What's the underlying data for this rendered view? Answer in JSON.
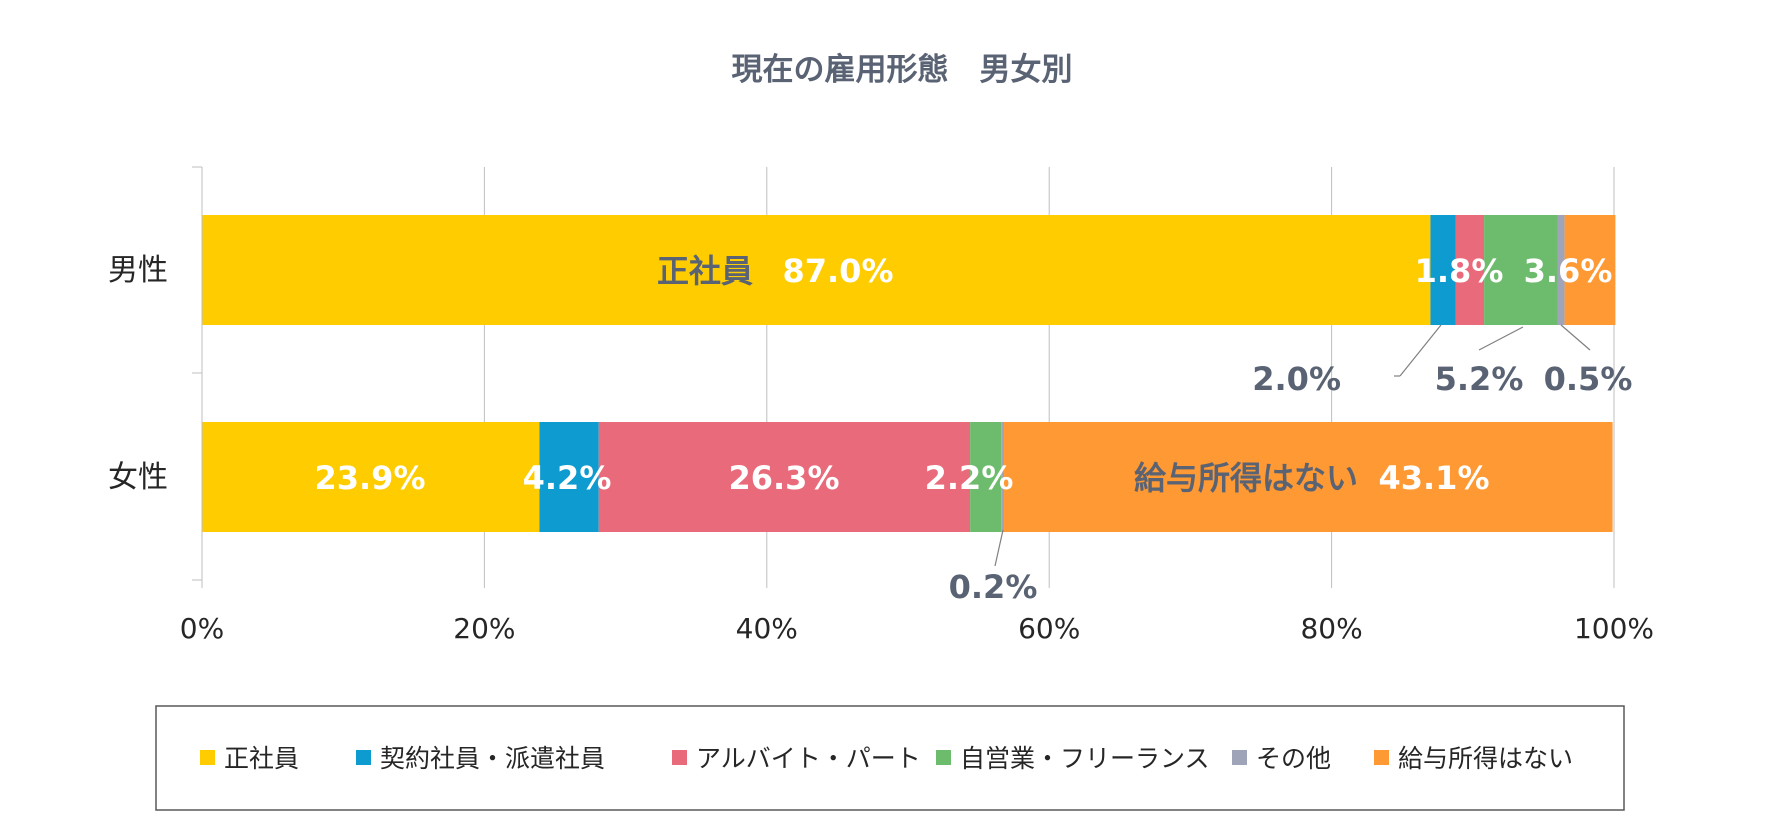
{
  "chart_data": {
    "type": "stacked-bar-horizontal-100",
    "title": "現在の雇用形態　男女別",
    "categories": [
      "男性",
      "女性"
    ],
    "xlim": [
      0,
      100
    ],
    "x_ticks": [
      0,
      20,
      40,
      60,
      80,
      100
    ],
    "x_tick_labels": [
      "0%",
      "20%",
      "40%",
      "60%",
      "80%",
      "100%"
    ],
    "grid": true,
    "legend_position": "bottom",
    "series": [
      {
        "name": "正社員",
        "color": "#FFCC00",
        "values": [
          87.0,
          23.9
        ]
      },
      {
        "name": "契約社員・派遣社員",
        "color": "#0E9BCF",
        "values": [
          1.8,
          4.2
        ]
      },
      {
        "name": "アルバイト・パート",
        "color": "#E96A7B",
        "values": [
          2.0,
          26.3
        ]
      },
      {
        "name": "自営業・フリーランス",
        "color": "#6DBC6D",
        "values": [
          5.2,
          2.2
        ]
      },
      {
        "name": "その他",
        "color": "#A0A4B8",
        "values": [
          0.5,
          0.2
        ]
      },
      {
        "name": "給与所得はない",
        "color": "#FF9933",
        "values": [
          3.6,
          43.1
        ]
      }
    ],
    "data_labels": [
      {
        "text": "正社員",
        "color": "#5A6374"
      },
      {
        "text": "87.0%",
        "color": "#FFFFFF"
      },
      {
        "text": "1.8%",
        "color": "#FFFFFF"
      },
      {
        "text": "3.6%",
        "color": "#FFFFFF"
      },
      {
        "text": "2.0%",
        "color": "#5A6374"
      },
      {
        "text": "5.2%",
        "color": "#5A6374"
      },
      {
        "text": "0.5%",
        "color": "#5A6374"
      },
      {
        "text": "23.9%",
        "color": "#FFFFFF"
      },
      {
        "text": "4.2%",
        "color": "#FFFFFF"
      },
      {
        "text": "26.3%",
        "color": "#FFFFFF"
      },
      {
        "text": "2.2%",
        "color": "#FFFFFF"
      },
      {
        "text": "給与所得はない",
        "color": "#5A6374"
      },
      {
        "text": "43.1%",
        "color": "#FFFFFF"
      },
      {
        "text": "0.2%",
        "color": "#5A6374"
      }
    ]
  }
}
